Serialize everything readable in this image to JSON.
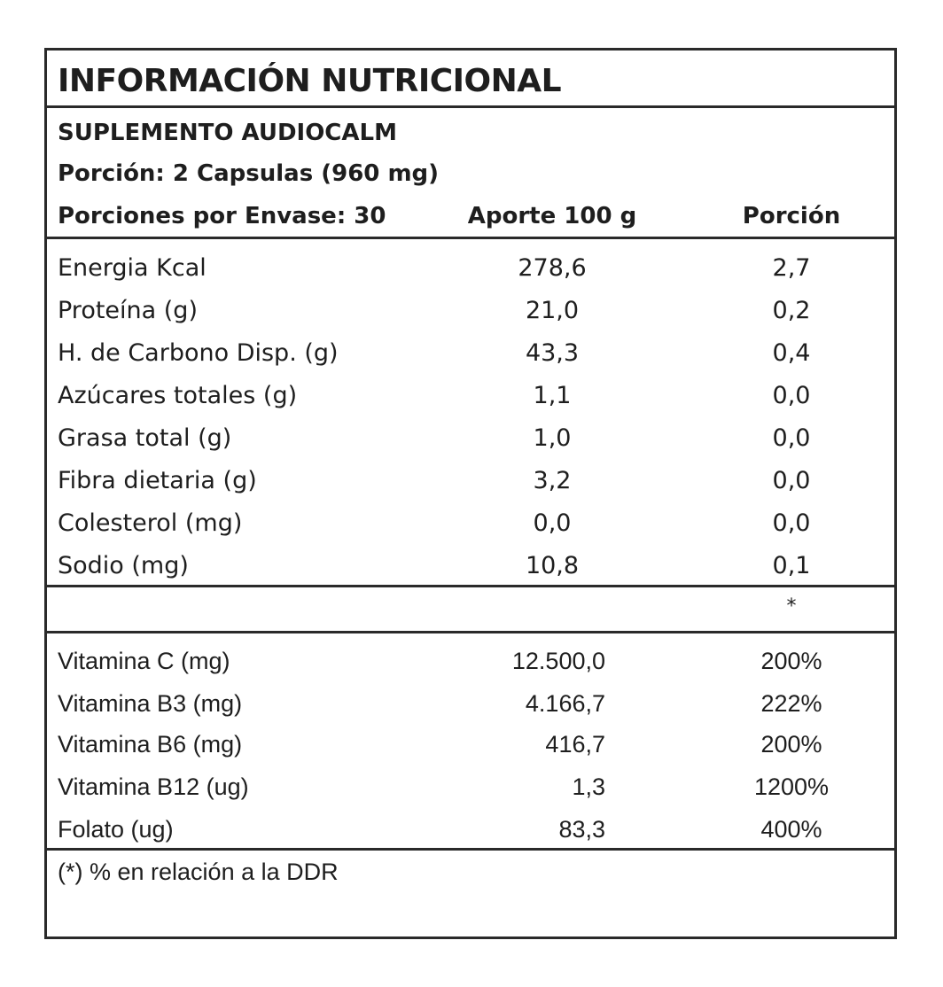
{
  "title": "INFORMACIÓN NUTRICIONAL",
  "product": "SUPLEMENTO AUDIOCALM",
  "serving": "Porción:  2 Capsulas (960 mg)",
  "servings_per_container": "Porciones por Envase: 30",
  "col_per100": "Aporte 100 g",
  "col_portion": "Porción",
  "nutrients": [
    {
      "label": "Energia Kcal",
      "per100": "278,6",
      "portion": "2,7"
    },
    {
      "label": "Proteína (g)",
      "per100": "21,0",
      "portion": "0,2"
    },
    {
      "label": "H. de Carbono Disp. (g)",
      "per100": "43,3",
      "portion": "0,4"
    },
    {
      "label": "Azúcares totales (g)",
      "per100": "1,1",
      "portion": "0,0"
    },
    {
      "label": "Grasa total (g)",
      "per100": "1,0",
      "portion": "0,0"
    },
    {
      "label": "Fibra dietaria (g)",
      "per100": "3,2",
      "portion": "0,0"
    },
    {
      "label": "Colesterol (mg)",
      "per100": "0,0",
      "portion": "0,0"
    },
    {
      "label": "Sodio (mg)",
      "per100": "10,8",
      "portion": "0,1"
    }
  ],
  "asterisk": "*",
  "vitamins": [
    {
      "label": "Vitamina C (mg)",
      "per100": "12.500,0",
      "portion": "200%"
    },
    {
      "label": "Vitamina B3 (mg)",
      "per100": "4.166,7",
      "portion": "222%"
    },
    {
      "label": "Vitamina B6 (mg)",
      "per100": "416,7",
      "portion": "200%"
    },
    {
      "label": "Vitamina B12 (ug)",
      "per100": "1,3",
      "portion": "1200%"
    },
    {
      "label": "Folato (ug)",
      "per100": "83,3",
      "portion": "400%"
    }
  ],
  "footnote": "(*) % en relación a la DDR"
}
